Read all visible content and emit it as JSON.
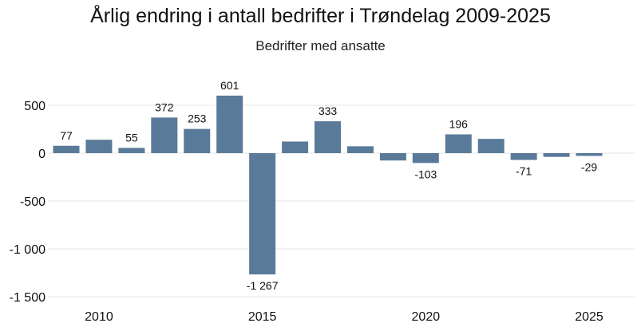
{
  "chart_data": {
    "type": "bar",
    "title": "Årlig endring i antall bedrifter i Trøndelag 2009-2025",
    "subtitle": "Bedrifter med ansatte",
    "xlabel": "",
    "ylabel": "",
    "categories": [
      2009,
      2010,
      2011,
      2012,
      2013,
      2014,
      2015,
      2016,
      2017,
      2018,
      2019,
      2020,
      2021,
      2022,
      2023,
      2024,
      2025
    ],
    "values": [
      77,
      140,
      55,
      372,
      253,
      601,
      -1267,
      121,
      333,
      72,
      -77,
      -103,
      196,
      149,
      -71,
      -39,
      -29
    ],
    "data_labels": [
      "77",
      "",
      "55",
      "372",
      "253",
      "601",
      "-1 267",
      "",
      "333",
      "",
      "",
      "-103",
      "196",
      "",
      "-71",
      "",
      "-29"
    ],
    "x_tick_labels": [
      "2010",
      "2015",
      "2020",
      "2025"
    ],
    "y_ticks": [
      500,
      0,
      -500,
      -1000,
      -1500
    ],
    "y_tick_labels": [
      "500",
      "0",
      "-500",
      "-1 000",
      "-1 500"
    ],
    "ylim": [
      -1500,
      600
    ],
    "grid": true,
    "bar_color": "#5a7a99",
    "grid_color": "#e6e6e6"
  }
}
